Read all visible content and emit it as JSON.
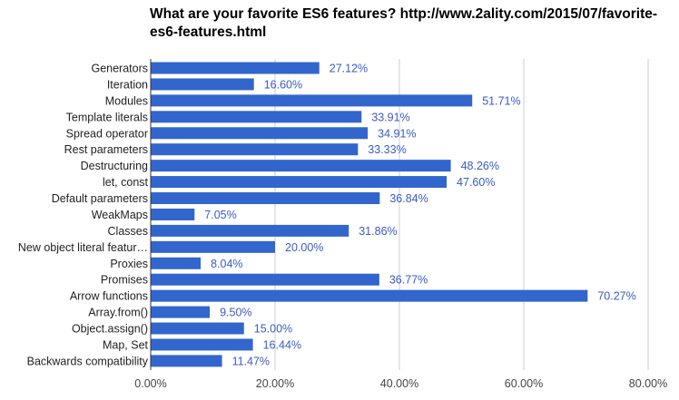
{
  "chart_data": {
    "type": "bar",
    "orientation": "horizontal",
    "title": "What are your favorite ES6 features? http://www.2ality.com/2015/07/favorite-es6-features.html",
    "categories": [
      "Generators",
      "Iteration",
      "Modules",
      "Template literals",
      "Spread operator",
      "Rest parameters",
      "Destructuring",
      "let, const",
      "Default parameters",
      "WeakMaps",
      "Classes",
      "New object literal featur…",
      "Proxies",
      "Promises",
      "Arrow functions",
      "Array.from()",
      "Object.assign()",
      "Map, Set",
      "Backwards compatibility"
    ],
    "values": [
      27.12,
      16.6,
      51.71,
      33.91,
      34.91,
      33.33,
      48.26,
      47.6,
      36.84,
      7.05,
      31.86,
      20.0,
      8.04,
      36.77,
      70.27,
      9.5,
      15.0,
      16.44,
      11.47
    ],
    "data_labels": [
      "27.12%",
      "16.60%",
      "51.71%",
      "33.91%",
      "34.91%",
      "33.33%",
      "48.26%",
      "47.60%",
      "36.84%",
      "7.05%",
      "31.86%",
      "20.00%",
      "8.04%",
      "36.77%",
      "70.27%",
      "9.50%",
      "15.00%",
      "16.44%",
      "11.47%"
    ],
    "xlim": [
      0,
      80
    ],
    "x_ticks": [
      "0.00%",
      "20.00%",
      "40.00%",
      "60.00%",
      "80.00%"
    ],
    "xlabel": "",
    "ylabel": "",
    "grid": true,
    "legend": "none",
    "bar_color": "#3366cc",
    "label_color": "#3a5bc7"
  }
}
